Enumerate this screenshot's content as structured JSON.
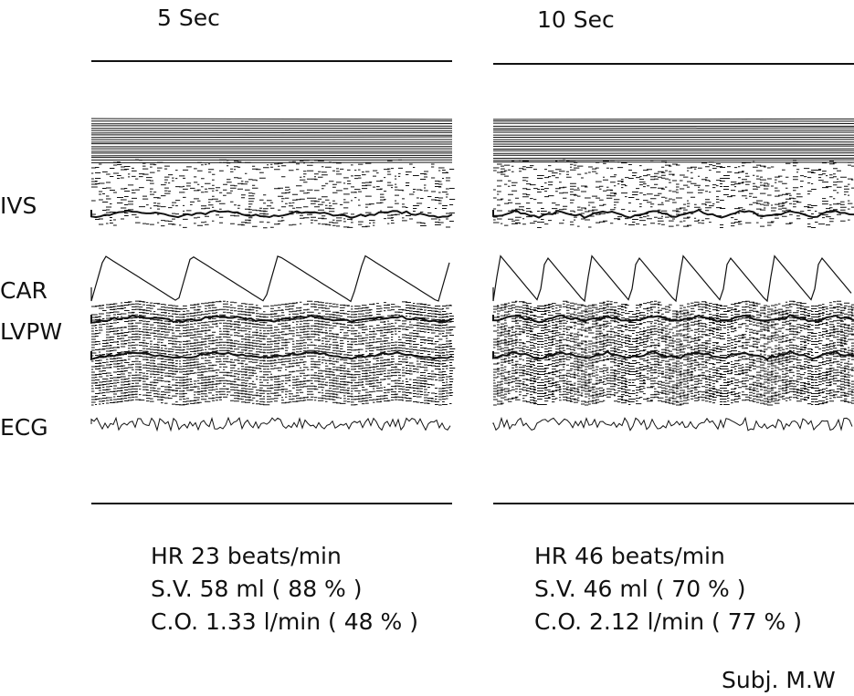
{
  "side_labels": [
    "IVS",
    "CAR",
    "LVPW",
    "ECG"
  ],
  "panels": [
    {
      "title": "5 Sec",
      "measurements": [
        "HR 23 beats/min",
        "S.V. 58 ml  ( 88 % )",
        "C.O. 1.33 l/min  ( 48 % )"
      ]
    },
    {
      "title": "10 Sec",
      "measurements": [
        "HR 46 beats/min",
        "S.V. 46 ml  ( 70 % )",
        "C.O. 2.12  l/min  ( 77 % )"
      ]
    }
  ],
  "subject": "Subj.  M.W"
}
